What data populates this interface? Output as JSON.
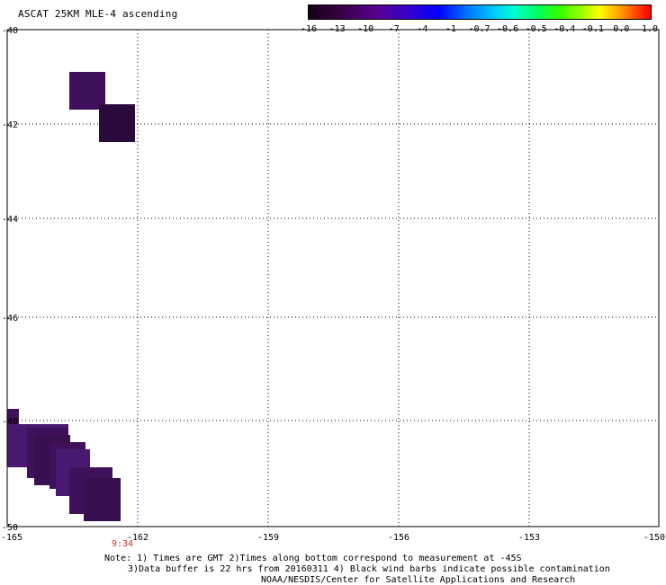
{
  "title": "ASCAT 25KM MLE-4 ascending",
  "colorbar": {
    "labels": [
      "-16",
      "-13",
      "-10",
      "-7",
      "-4",
      "-1",
      "-0.7",
      "-0.6",
      "-0.5",
      "-0.4",
      "-0.1",
      "0.0",
      "1.0"
    ]
  },
  "axes": {
    "lat_labels": [
      "-40",
      "-42",
      "-44",
      "-46",
      "-48",
      "-50"
    ],
    "lon_labels": [
      "-165",
      "-162",
      "-159",
      "-156",
      "-153",
      "-150"
    ]
  },
  "time_label": "9:34",
  "notes": {
    "line1": "Note: 1) Times are GMT 2)Times along bottom correspond to measurement at -45S",
    "line2": "3)Data buffer is 22 hrs from 20160311 4) Black wind barbs indicate possible contamination",
    "line3": "NOAA/NESDIS/Center for Satellite Applications and Research"
  },
  "colors": {
    "swath_dark": "#2a0a3a",
    "swath_purple": "#40105a",
    "swath_violet": "#4a1870",
    "time_text": "#d03020"
  }
}
